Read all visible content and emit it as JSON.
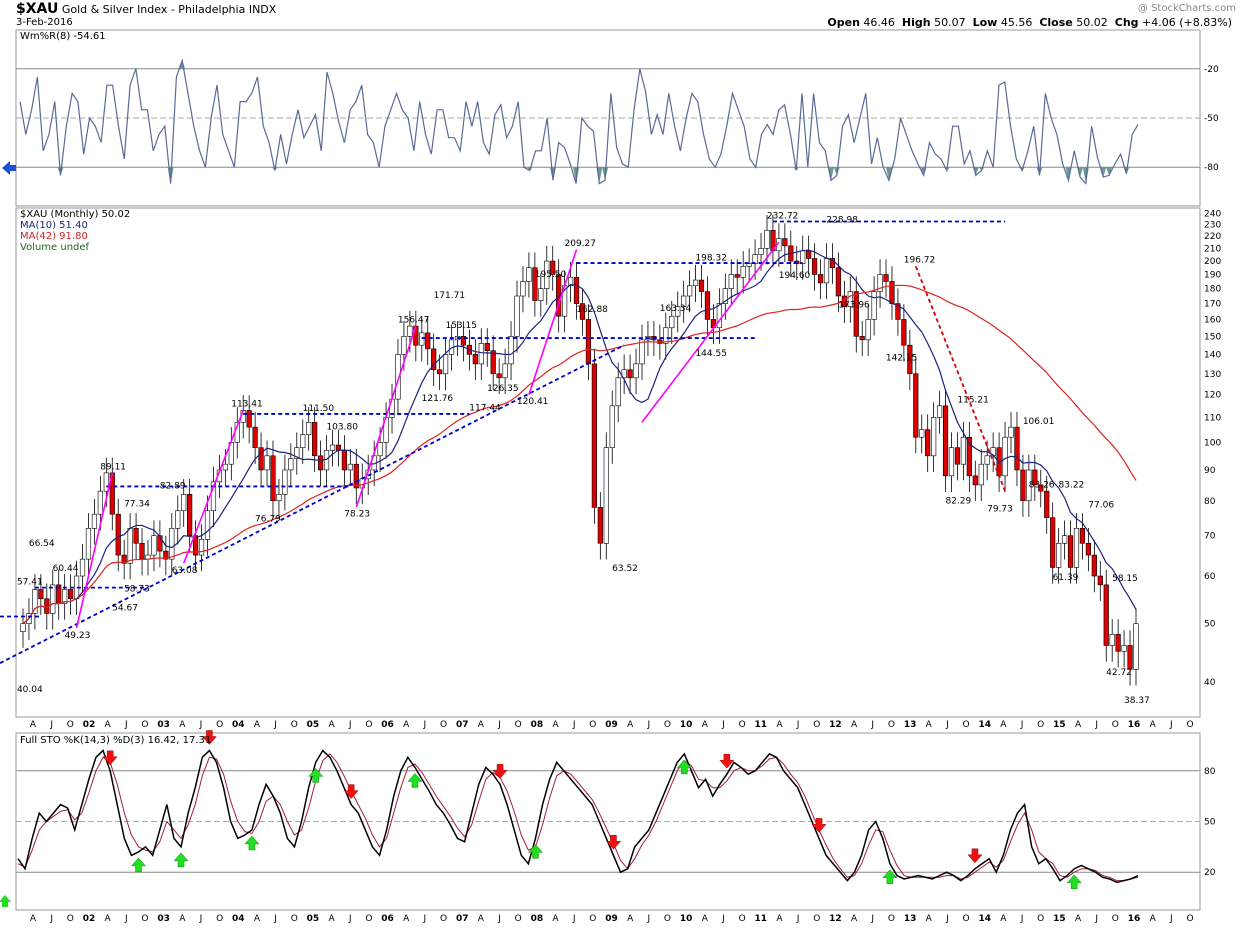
{
  "header": {
    "symbol": "$XAU",
    "name": "Gold & Silver Index - Philadelphia INDX",
    "date": "3-Feb-2016",
    "watermark": "@ StockCharts.com",
    "open_label": "Open",
    "open": "46.46",
    "high_label": "High",
    "high": "50.07",
    "low_label": "Low",
    "low": "45.56",
    "close_label": "Close",
    "close": "50.02",
    "chg_label": "Chg",
    "chg": "+4.06 (+8.83%)"
  },
  "legend": {
    "wmr": "Wm%R(8) -54.61",
    "price": "$XAU (Monthly) 50.02",
    "ma10": "MA(10) 51.40",
    "ma42": "MA(42) 91.80",
    "volume": "Volume undef",
    "sto": "Full STO %K(14,3) %D(3) 16.42, 17.31"
  },
  "colors": {
    "up": "#ffffff",
    "down": "#dd0000",
    "ma10": "#1a237e",
    "ma42": "#dd2222",
    "wmr_line": "#5a6a96",
    "wmr_fill": "#6a9a92",
    "magenta": "#ff00ff",
    "dotted": "#0000cc",
    "sto_k": "#000000",
    "sto_d": "#a02040",
    "grid": "#d9d9d9"
  },
  "chart_data": {
    "type": "line",
    "x_axis_labels": [
      "A",
      "J",
      "O",
      "02",
      "A",
      "J",
      "O",
      "03",
      "A",
      "J",
      "O",
      "04",
      "A",
      "J",
      "O",
      "05",
      "A",
      "J",
      "O",
      "06",
      "A",
      "J",
      "O",
      "07",
      "A",
      "J",
      "O",
      "08",
      "A",
      "J",
      "O",
      "09",
      "A",
      "J",
      "O",
      "10",
      "A",
      "J",
      "O",
      "11",
      "A",
      "J",
      "O",
      "12",
      "A",
      "J",
      "O",
      "13",
      "A",
      "J",
      "O",
      "14",
      "A",
      "J",
      "O",
      "15",
      "A",
      "J",
      "O",
      "16",
      "A",
      "J",
      "O"
    ],
    "wmr": {
      "ylim": [
        -100,
        0
      ],
      "ticks": [
        -20,
        -50,
        -80
      ],
      "values": [
        -40,
        -60,
        -45,
        -25,
        -70,
        -60,
        -40,
        -85,
        -55,
        -35,
        -40,
        -72,
        -50,
        -55,
        -65,
        -30,
        -30,
        -55,
        -75,
        -30,
        -20,
        -45,
        -45,
        -70,
        -60,
        -55,
        -90,
        -25,
        -15,
        -35,
        -55,
        -70,
        -80,
        -50,
        -30,
        -60,
        -70,
        -80,
        -40,
        -40,
        -35,
        -25,
        -55,
        -65,
        -82,
        -60,
        -78,
        -60,
        -45,
        -62,
        -55,
        -48,
        -70,
        -22,
        -35,
        -52,
        -65,
        -45,
        -40,
        -30,
        -60,
        -65,
        -80,
        -55,
        -45,
        -35,
        -45,
        -50,
        -70,
        -40,
        -60,
        -72,
        -45,
        -45,
        -62,
        -62,
        -70,
        -40,
        -55,
        -40,
        -65,
        -72,
        -48,
        -42,
        -62,
        -55,
        -40,
        -80,
        -82,
        -70,
        -70,
        -50,
        -88,
        -65,
        -68,
        -78,
        -90,
        -50,
        -55,
        -58,
        -90,
        -88,
        -35,
        -68,
        -78,
        -80,
        -45,
        -20,
        -34,
        -60,
        -48,
        -60,
        -35,
        -55,
        -70,
        -50,
        -35,
        -40,
        -60,
        -75,
        -80,
        -72,
        -55,
        -35,
        -45,
        -55,
        -75,
        -80,
        -60,
        -54,
        -60,
        -45,
        -42,
        -60,
        -82,
        -35,
        -80,
        -35,
        -65,
        -70,
        -88,
        -85,
        -55,
        -48,
        -65,
        -50,
        -35,
        -78,
        -62,
        -80,
        -88,
        -75,
        -50,
        -60,
        -70,
        -78,
        -85,
        -65,
        -72,
        -75,
        -82,
        -55,
        -55,
        -78,
        -70,
        -85,
        -82,
        -70,
        -80,
        -30,
        -28,
        -55,
        -75,
        -82,
        -70,
        -55,
        -85,
        -35,
        -50,
        -60,
        -78,
        -88,
        -70,
        -86,
        -90,
        -55,
        -74,
        -86,
        -85,
        -78,
        -72,
        -84,
        -60,
        -54
      ],
      "current": -54.61
    },
    "price": {
      "log_scale": true,
      "ylim": [
        35,
        245
      ],
      "ticks": [
        40,
        50,
        60,
        70,
        80,
        90,
        100,
        110,
        120,
        130,
        140,
        150,
        160,
        170,
        180,
        190,
        200,
        210,
        220,
        230,
        240
      ],
      "closes": [
        50,
        52,
        57,
        55,
        52,
        58,
        54,
        57,
        55,
        60,
        64,
        72,
        76,
        83,
        89,
        76,
        65,
        63,
        72,
        68,
        64,
        65,
        70,
        66,
        64,
        72,
        77,
        82,
        70,
        65,
        69,
        77,
        86,
        90,
        92,
        100,
        108,
        113,
        106,
        98,
        90,
        95,
        80,
        82,
        90,
        94,
        98,
        103,
        108,
        95,
        90,
        97,
        99,
        97,
        90,
        92,
        84,
        87,
        90,
        95,
        100,
        110,
        118,
        140,
        150,
        156,
        145,
        152,
        143,
        132,
        130,
        140,
        148,
        150,
        145,
        140,
        135,
        146,
        142,
        130,
        128,
        135,
        150,
        175,
        185,
        195,
        172,
        180,
        200,
        190,
        162,
        182,
        188,
        170,
        160,
        135,
        78,
        68,
        98,
        115,
        128,
        132,
        128,
        135,
        148,
        150,
        148,
        146,
        155,
        162,
        168,
        175,
        182,
        186,
        178,
        160,
        155,
        170,
        180,
        190,
        188,
        196,
        198,
        205,
        210,
        225,
        208,
        218,
        212,
        200,
        198,
        208,
        202,
        190,
        184,
        202,
        195,
        175,
        168,
        178,
        150,
        148,
        160,
        178,
        190,
        185,
        170,
        160,
        145,
        130,
        102,
        105,
        95,
        110,
        115,
        88,
        98,
        92,
        102,
        88,
        85,
        92,
        95,
        98,
        88,
        102,
        106,
        90,
        80,
        90,
        85,
        83,
        75,
        62,
        68,
        70,
        62,
        72,
        68,
        65,
        60,
        58,
        46,
        48,
        45,
        46,
        42,
        50
      ],
      "labels": [
        {
          "t": "66.54",
          "i": 3
        },
        {
          "t": "60.44",
          "i": 7
        },
        {
          "t": "57.41",
          "i": 1
        },
        {
          "t": "40.04",
          "i": 1
        },
        {
          "t": "49.23",
          "i": 9
        },
        {
          "t": "54.67",
          "i": 17
        },
        {
          "t": "89.11",
          "i": 15
        },
        {
          "t": "77.34",
          "i": 19
        },
        {
          "t": "58.73",
          "i": 19
        },
        {
          "t": "82.89",
          "i": 25
        },
        {
          "t": "63.08",
          "i": 27
        },
        {
          "t": "113.41",
          "i": 37
        },
        {
          "t": "76.79",
          "i": 41
        },
        {
          "t": "111.50",
          "i": 49
        },
        {
          "t": "103.80",
          "i": 53
        },
        {
          "t": "78.23",
          "i": 56
        },
        {
          "t": "156.47",
          "i": 65
        },
        {
          "t": "121.76",
          "i": 69
        },
        {
          "t": "171.71",
          "i": 71
        },
        {
          "t": "153.15",
          "i": 73
        },
        {
          "t": "117.44",
          "i": 77
        },
        {
          "t": "126.35",
          "i": 80
        },
        {
          "t": "120.41",
          "i": 85
        },
        {
          "t": "195.50",
          "i": 88
        },
        {
          "t": "209.27",
          "i": 93
        },
        {
          "t": "162.88",
          "i": 95
        },
        {
          "t": "63.52",
          "i": 101
        },
        {
          "t": "163.34",
          "i": 109
        },
        {
          "t": "198.32",
          "i": 115
        },
        {
          "t": "144.55",
          "i": 115
        },
        {
          "t": "232.72",
          "i": 127
        },
        {
          "t": "194.60",
          "i": 129
        },
        {
          "t": "228.98",
          "i": 137
        },
        {
          "t": "173.96",
          "i": 139
        },
        {
          "t": "142.15",
          "i": 147
        },
        {
          "t": "196.72",
          "i": 150
        },
        {
          "t": "115.21",
          "i": 159
        },
        {
          "t": "82.29",
          "i": 157
        },
        {
          "t": "79.73",
          "i": 164
        },
        {
          "t": "106.01",
          "i": 170
        },
        {
          "t": "83.26",
          "i": 171
        },
        {
          "t": "83.22",
          "i": 176
        },
        {
          "t": "61.39",
          "i": 175
        },
        {
          "t": "77.06",
          "i": 181
        },
        {
          "t": "58.15",
          "i": 185
        },
        {
          "t": "42.72",
          "i": 184
        },
        {
          "t": "38.37",
          "i": 189
        }
      ]
    },
    "sto": {
      "ylim": [
        0,
        100
      ],
      "ticks": [
        20,
        50,
        80
      ],
      "k": [
        28,
        22,
        40,
        55,
        50,
        55,
        60,
        58,
        45,
        60,
        75,
        88,
        92,
        80,
        60,
        40,
        30,
        32,
        35,
        30,
        45,
        60,
        40,
        35,
        55,
        70,
        88,
        92,
        85,
        70,
        50,
        40,
        42,
        45,
        60,
        72,
        65,
        55,
        40,
        35,
        50,
        70,
        85,
        92,
        88,
        80,
        70,
        60,
        55,
        45,
        35,
        30,
        45,
        65,
        80,
        88,
        82,
        75,
        68,
        60,
        55,
        48,
        40,
        38,
        55,
        72,
        82,
        78,
        72,
        60,
        45,
        30,
        25,
        40,
        60,
        75,
        85,
        80,
        75,
        70,
        65,
        60,
        50,
        40,
        30,
        20,
        22,
        35,
        40,
        45,
        55,
        65,
        75,
        85,
        90,
        80,
        70,
        75,
        65,
        72,
        78,
        85,
        82,
        78,
        80,
        85,
        90,
        88,
        80,
        75,
        70,
        60,
        50,
        40,
        30,
        25,
        20,
        15,
        20,
        30,
        45,
        50,
        40,
        25,
        18,
        16,
        17,
        18,
        17,
        16,
        18,
        20,
        18,
        15,
        18,
        22,
        25,
        28,
        20,
        30,
        45,
        55,
        60,
        35,
        25,
        28,
        22,
        15,
        18,
        22,
        24,
        22,
        20,
        17,
        16,
        14,
        15,
        16,
        18
      ],
      "d": [
        25,
        23,
        33,
        45,
        50,
        53,
        56,
        57,
        51,
        55,
        67,
        80,
        88,
        85,
        72,
        55,
        42,
        35,
        33,
        32,
        38,
        50,
        45,
        40,
        48,
        60,
        77,
        88,
        87,
        78,
        62,
        50,
        44,
        43,
        50,
        62,
        65,
        60,
        50,
        42,
        45,
        58,
        74,
        86,
        90,
        85,
        77,
        68,
        60,
        52,
        42,
        35,
        40,
        55,
        70,
        82,
        84,
        79,
        72,
        65,
        59,
        53,
        46,
        41,
        48,
        62,
        75,
        79,
        76,
        68,
        56,
        42,
        33,
        35,
        48,
        64,
        77,
        80,
        78,
        73,
        68,
        63,
        55,
        46,
        37,
        27,
        22,
        28,
        36,
        42,
        50,
        60,
        70,
        80,
        86,
        83,
        75,
        74,
        70,
        70,
        74,
        80,
        82,
        80,
        80,
        83,
        87,
        88,
        84,
        78,
        73,
        65,
        55,
        45,
        36,
        28,
        22,
        17,
        18,
        25,
        36,
        45,
        44,
        33,
        24,
        18,
        17,
        17,
        17,
        17,
        17,
        18,
        18,
        16,
        17,
        20,
        23,
        26,
        23,
        27,
        38,
        48,
        55,
        45,
        32,
        28,
        25,
        18,
        17,
        20,
        22,
        22,
        21,
        18,
        17,
        15,
        15,
        16,
        17
      ],
      "sell_arrows": [
        13,
        27,
        47,
        68,
        84,
        100,
        113,
        135
      ],
      "buy_arrows": [
        17,
        23,
        33,
        42,
        56,
        73,
        94,
        123,
        149
      ]
    }
  }
}
